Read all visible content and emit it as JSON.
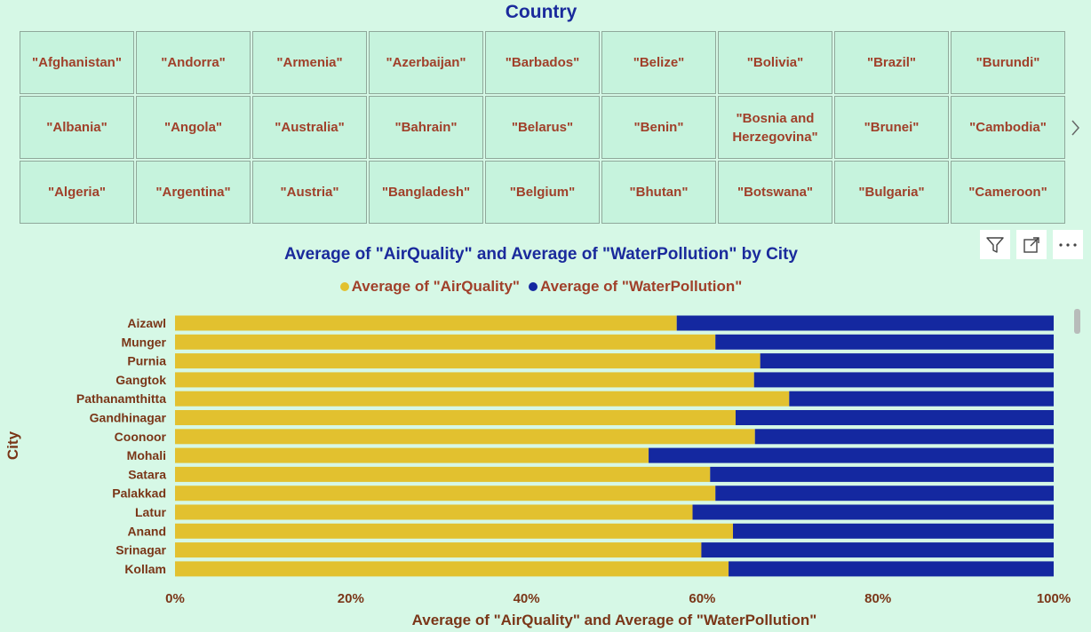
{
  "slicer": {
    "title": "Country",
    "tiles": [
      "\"Afghanistan\"",
      "\"Andorra\"",
      "\"Armenia\"",
      "\"Azerbaijan\"",
      "\"Barbados\"",
      "\"Belize\"",
      "\"Bolivia\"",
      "\"Brazil\"",
      "\"Burundi\"",
      "\"Albania\"",
      "\"Angola\"",
      "\"Australia\"",
      "\"Bahrain\"",
      "\"Belarus\"",
      "\"Benin\"",
      "\"Bosnia and Herzegovina\"",
      "\"Brunei\"",
      "\"Cambodia\"",
      "\"Algeria\"",
      "\"Argentina\"",
      "\"Austria\"",
      "\"Bangladesh\"",
      "\"Belgium\"",
      "\"Bhutan\"",
      "\"Botswana\"",
      "\"Bulgaria\"",
      "\"Cameroon\""
    ],
    "next_icon": "chevron-right-icon"
  },
  "visual_header": {
    "icons": [
      "filter-icon",
      "focus-mode-icon",
      "more-options-icon"
    ]
  },
  "colors": {
    "air_quality": "#e2c12f",
    "water_pollution": "#1428a0",
    "title": "#1a2a9c",
    "label": "#7a3618"
  },
  "chart_data": {
    "type": "bar",
    "orientation": "horizontal",
    "stacking": "100%",
    "title": "Average of \"AirQuality\" and Average of \"WaterPollution\" by City",
    "xlabel": "Average of \"AirQuality\" and Average of \"WaterPollution\"",
    "ylabel": "City",
    "legend_position": "top-center",
    "categories": [
      "Aizawl",
      "Munger",
      "Purnia",
      "Gangtok",
      "Pathanamthitta",
      "Gandhinagar",
      "Coonoor",
      "Mohali",
      "Satara",
      "Palakkad",
      "Latur",
      "Anand",
      "Srinagar",
      "Kollam"
    ],
    "series": [
      {
        "name": "Average of  \"AirQuality\"",
        "values": [
          57.1,
          61.5,
          66.6,
          65.9,
          69.9,
          63.8,
          66.0,
          53.9,
          60.9,
          61.5,
          58.9,
          63.5,
          59.9,
          63.0
        ]
      },
      {
        "name": "Average of  \"WaterPollution\"",
        "values": [
          42.9,
          38.5,
          33.4,
          34.1,
          30.1,
          36.2,
          34.0,
          46.1,
          39.1,
          38.5,
          41.1,
          36.5,
          40.1,
          37.0
        ]
      }
    ],
    "x_ticks": [
      "0%",
      "20%",
      "40%",
      "60%",
      "80%",
      "100%"
    ],
    "xlim": [
      0,
      100
    ],
    "grid": false
  }
}
